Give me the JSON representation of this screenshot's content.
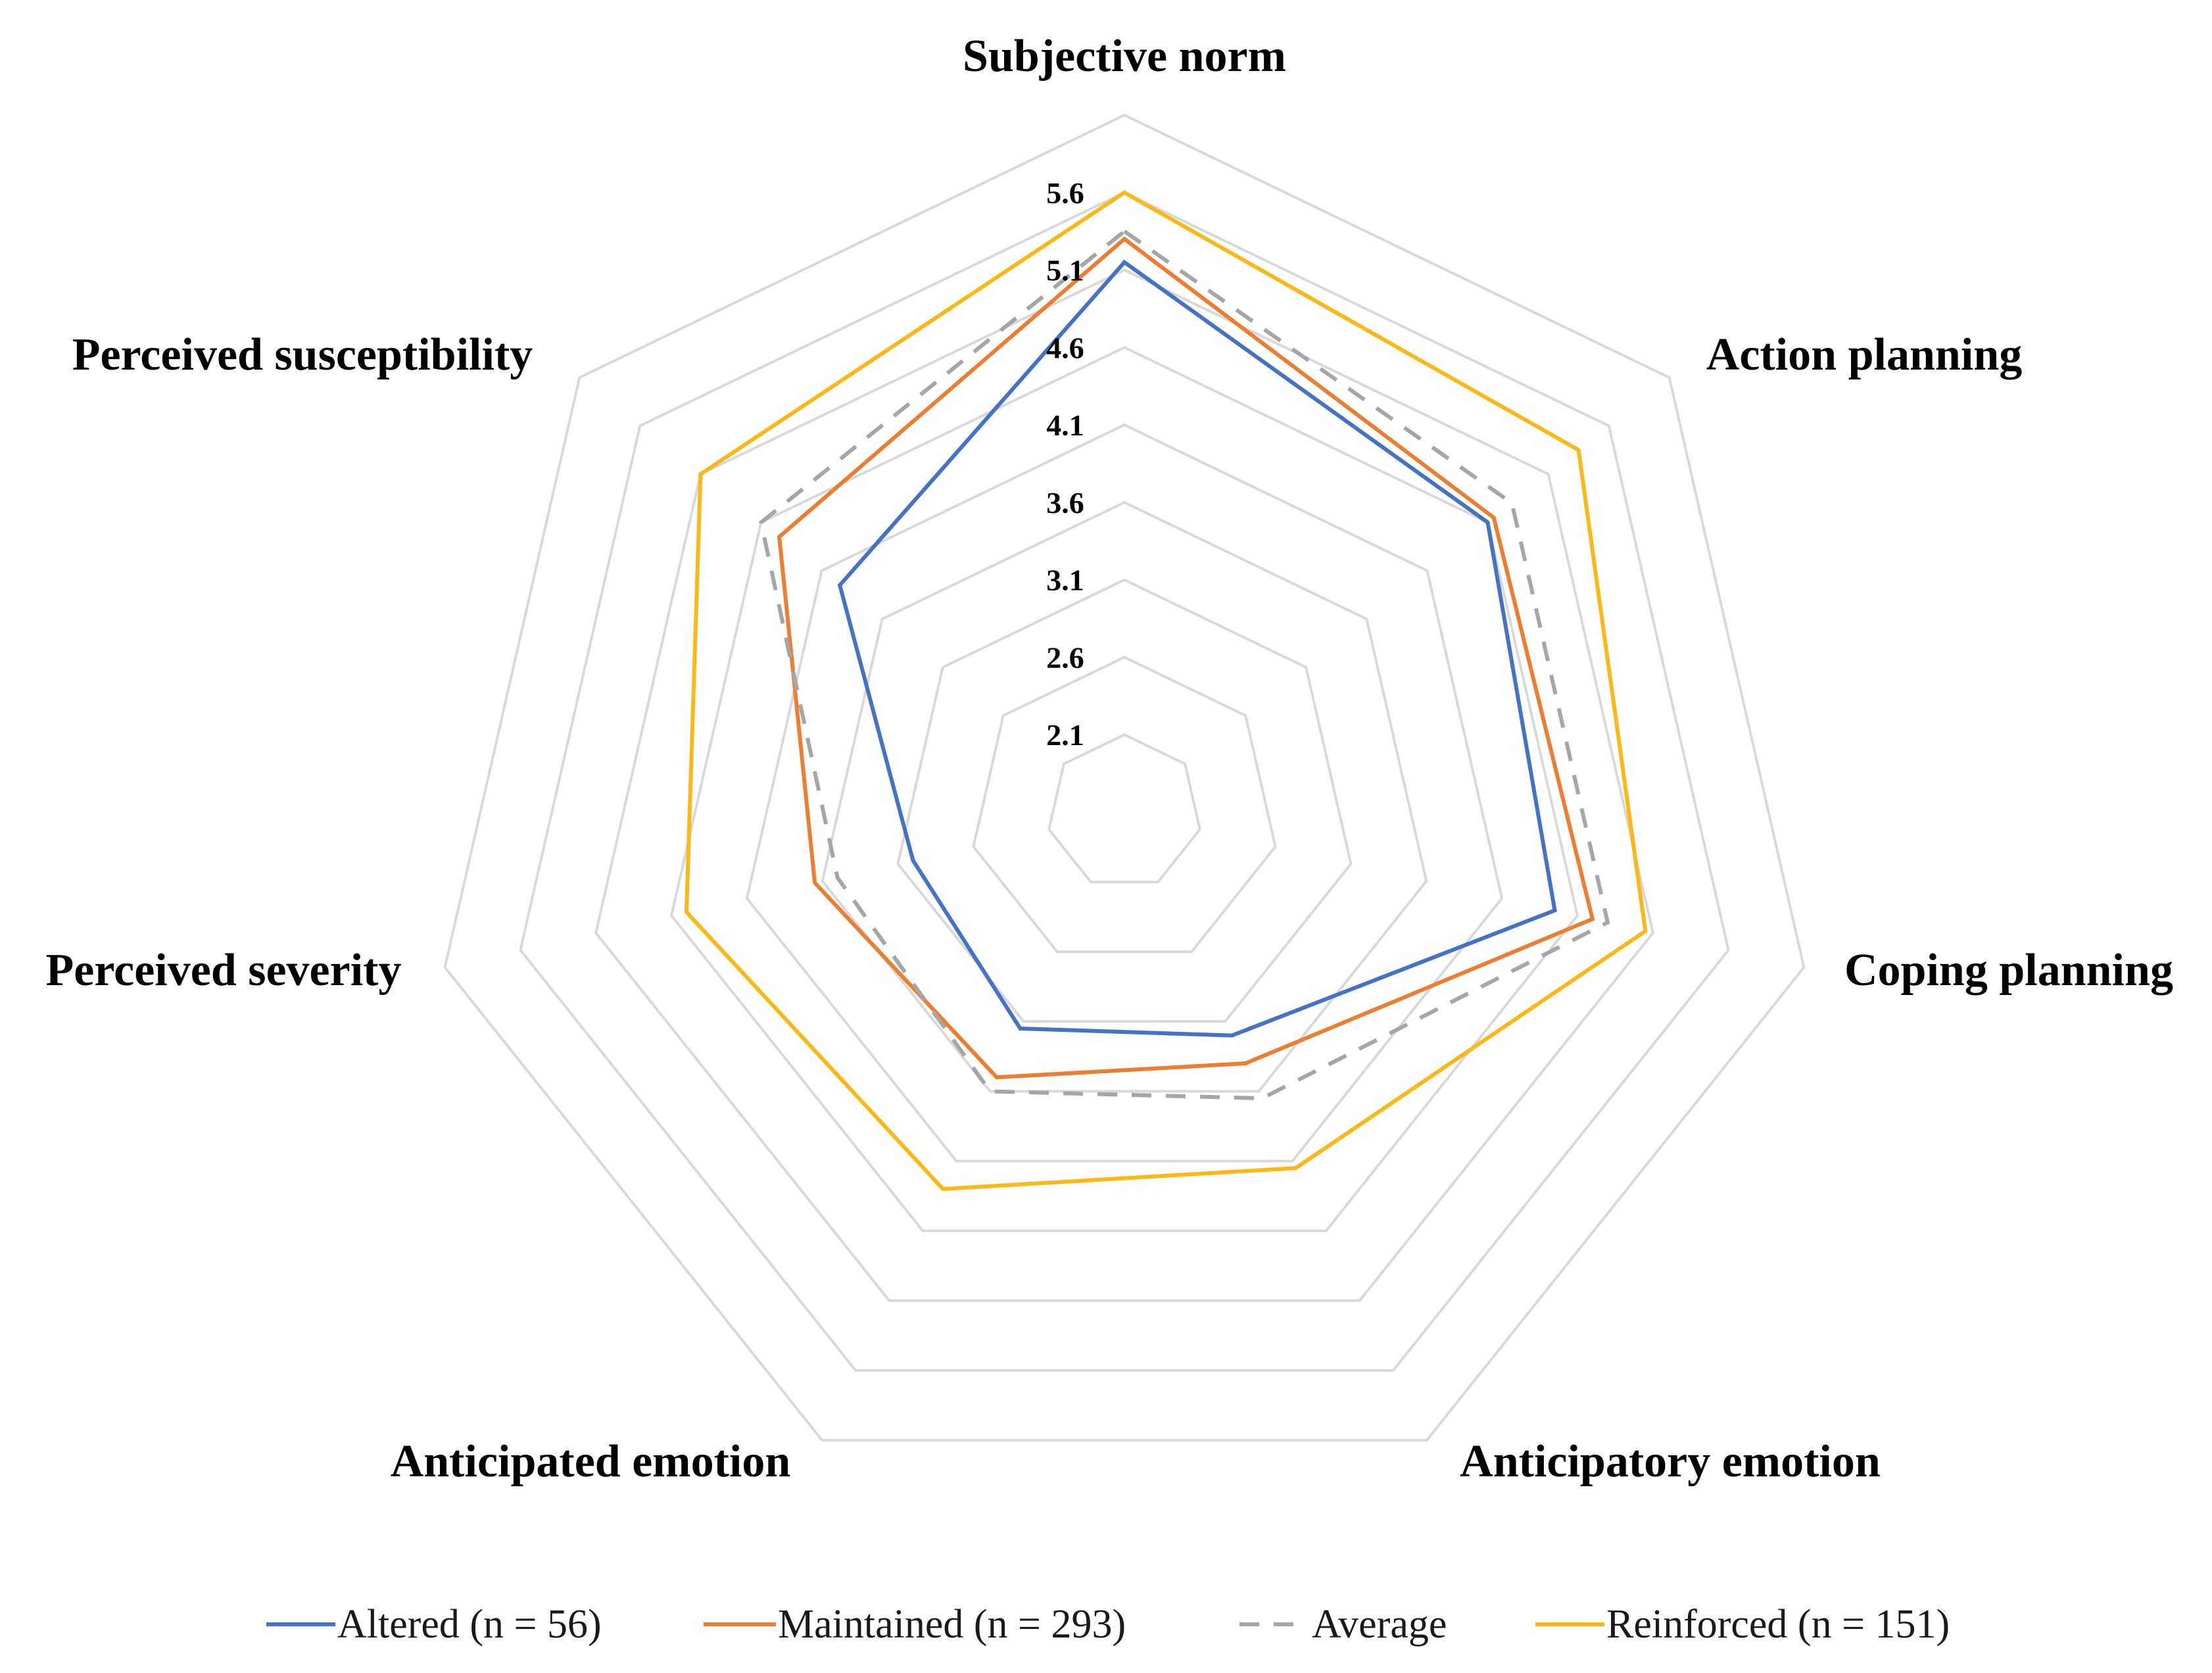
{
  "chart_data": {
    "type": "radar",
    "title": "",
    "axes": [
      "Subjective norm",
      "Action planning",
      "Coping planning",
      "Anticipatory emotion",
      "Anticipated emotion",
      "Perceived severity",
      "Perceived susceptibility"
    ],
    "ticks": [
      "2.1",
      "2.6",
      "3.1",
      "3.6",
      "4.1",
      "4.6",
      "5.1",
      "5.6"
    ],
    "rmin": 1.6,
    "rmax": 6.1,
    "series": [
      {
        "name": "Reinforced (n = 151)",
        "color": "#FBB817",
        "dash": false,
        "values": [
          5.6,
          5.35,
          5.05,
          4.15,
          4.3,
          4.5,
          5.1
        ]
      },
      {
        "name": "Maintained (n = 293)",
        "color": "#ED7D31",
        "dash": false,
        "values": [
          5.3,
          4.65,
          4.7,
          3.4,
          3.5,
          3.65,
          4.45
        ]
      },
      {
        "name": "Altered (n = 56)",
        "color": "#4472C4",
        "dash": false,
        "values": [
          5.15,
          4.6,
          4.45,
          3.2,
          3.15,
          3.0,
          3.95
        ]
      },
      {
        "name": "Average",
        "color": "#A6A6A6",
        "dash": true,
        "values": [
          5.35,
          4.8,
          4.8,
          3.65,
          3.6,
          3.5,
          4.6
        ]
      }
    ],
    "legend": [
      {
        "label": "Altered (n = 56)",
        "color": "#4472C4",
        "dash": false
      },
      {
        "label": "Maintained (n = 293)",
        "color": "#ED7D31",
        "dash": false
      },
      {
        "label": "Average",
        "color": "#A6A6A6",
        "dash": true
      },
      {
        "label": "Reinforced (n = 151)",
        "color": "#FBB817",
        "dash": false
      }
    ],
    "legend_position": "bottom"
  }
}
